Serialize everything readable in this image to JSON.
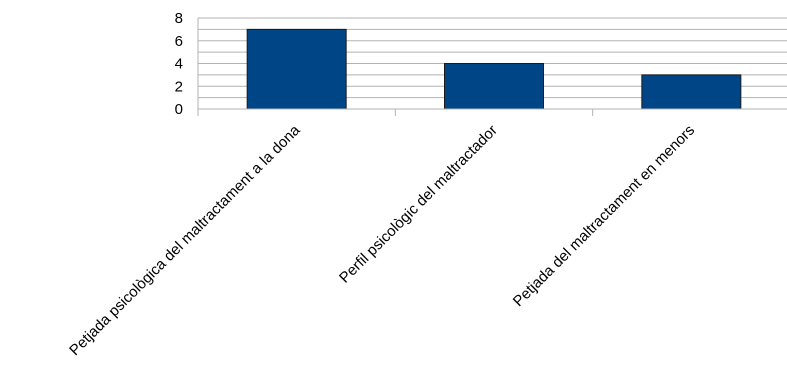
{
  "chart_data": {
    "type": "bar",
    "title": "",
    "xlabel": "",
    "ylabel": "",
    "categories": [
      "Petjada psicològica del maltractament a la dona",
      "Perfil psicològic del maltractador",
      "Petjada del maltractament en menors"
    ],
    "values": [
      7,
      4,
      3
    ],
    "ylim": [
      0,
      8
    ],
    "yticks": [
      0,
      2,
      4,
      6,
      8
    ],
    "grid": true,
    "legend": "none",
    "bar_color": "#004586",
    "grid_color": "#b3b3b3"
  }
}
